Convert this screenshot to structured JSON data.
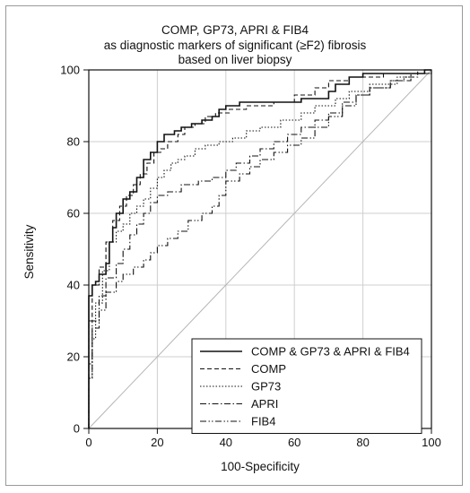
{
  "chart_data": {
    "type": "line",
    "title": "COMP, GP73, APRI & FIB4",
    "subtitle": "as diagnostic markers of significant (≥F2) fibrosis",
    "subtitle2": "based on liver biopsy",
    "xlabel": "100-Specificity",
    "ylabel": "Sensitivity",
    "xlim": [
      0,
      100
    ],
    "ylim": [
      0,
      100
    ],
    "x_ticks": [
      0,
      20,
      40,
      60,
      80,
      100
    ],
    "y_ticks": [
      0,
      20,
      40,
      60,
      80,
      100
    ],
    "grid": true,
    "legend_position": "bottom-right",
    "diagonal_reference": true,
    "series": [
      {
        "name": "COMP & GP73 & APRI & FIB4",
        "style": "solid",
        "points": [
          [
            0,
            0
          ],
          [
            0,
            37
          ],
          [
            1,
            37
          ],
          [
            1,
            40
          ],
          [
            2,
            40
          ],
          [
            2,
            41
          ],
          [
            3,
            41
          ],
          [
            3,
            43
          ],
          [
            5,
            43
          ],
          [
            5,
            46
          ],
          [
            6,
            46
          ],
          [
            6,
            52
          ],
          [
            7,
            52
          ],
          [
            7,
            56
          ],
          [
            8,
            56
          ],
          [
            8,
            60
          ],
          [
            10,
            60
          ],
          [
            10,
            64
          ],
          [
            12,
            64
          ],
          [
            12,
            66
          ],
          [
            14,
            66
          ],
          [
            14,
            70
          ],
          [
            16,
            70
          ],
          [
            16,
            75
          ],
          [
            18,
            75
          ],
          [
            18,
            77
          ],
          [
            20,
            77
          ],
          [
            20,
            80
          ],
          [
            22,
            80
          ],
          [
            22,
            82
          ],
          [
            25,
            82
          ],
          [
            25,
            83
          ],
          [
            27,
            83
          ],
          [
            27,
            84
          ],
          [
            30,
            84
          ],
          [
            30,
            85
          ],
          [
            33,
            85
          ],
          [
            33,
            86
          ],
          [
            36,
            86
          ],
          [
            36,
            87
          ],
          [
            38,
            87
          ],
          [
            38,
            89
          ],
          [
            40,
            89
          ],
          [
            40,
            90
          ],
          [
            44,
            90
          ],
          [
            44,
            91
          ],
          [
            62,
            91
          ],
          [
            62,
            92
          ],
          [
            70,
            92
          ],
          [
            70,
            94
          ],
          [
            72,
            94
          ],
          [
            72,
            96
          ],
          [
            76,
            96
          ],
          [
            76,
            98
          ],
          [
            80,
            98
          ],
          [
            80,
            99
          ],
          [
            98,
            99
          ],
          [
            98,
            100
          ],
          [
            100,
            100
          ]
        ]
      },
      {
        "name": "COMP",
        "style": "dashed",
        "points": [
          [
            0,
            0
          ],
          [
            0,
            30
          ],
          [
            1,
            30
          ],
          [
            1,
            40
          ],
          [
            3,
            40
          ],
          [
            3,
            45
          ],
          [
            5,
            45
          ],
          [
            5,
            52
          ],
          [
            7,
            52
          ],
          [
            7,
            58
          ],
          [
            9,
            58
          ],
          [
            9,
            62
          ],
          [
            11,
            62
          ],
          [
            11,
            65
          ],
          [
            13,
            65
          ],
          [
            13,
            68
          ],
          [
            15,
            68
          ],
          [
            15,
            71
          ],
          [
            17,
            71
          ],
          [
            17,
            74
          ],
          [
            19,
            74
          ],
          [
            19,
            77
          ],
          [
            21,
            77
          ],
          [
            21,
            78
          ],
          [
            23,
            78
          ],
          [
            23,
            80
          ],
          [
            26,
            80
          ],
          [
            26,
            82
          ],
          [
            28,
            82
          ],
          [
            28,
            84
          ],
          [
            31,
            84
          ],
          [
            31,
            85
          ],
          [
            34,
            85
          ],
          [
            34,
            87
          ],
          [
            37,
            87
          ],
          [
            37,
            88
          ],
          [
            41,
            88
          ],
          [
            41,
            89
          ],
          [
            46,
            89
          ],
          [
            46,
            90
          ],
          [
            54,
            90
          ],
          [
            54,
            91
          ],
          [
            60,
            91
          ],
          [
            60,
            93
          ],
          [
            66,
            93
          ],
          [
            66,
            95
          ],
          [
            70,
            95
          ],
          [
            70,
            97
          ],
          [
            76,
            97
          ],
          [
            76,
            98
          ],
          [
            86,
            98
          ],
          [
            86,
            99
          ],
          [
            96,
            99
          ],
          [
            96,
            100
          ],
          [
            100,
            100
          ]
        ]
      },
      {
        "name": "GP73",
        "style": "dotted",
        "points": [
          [
            0,
            0
          ],
          [
            0,
            14
          ],
          [
            1,
            14
          ],
          [
            1,
            25
          ],
          [
            2,
            25
          ],
          [
            2,
            35
          ],
          [
            4,
            35
          ],
          [
            4,
            44
          ],
          [
            6,
            44
          ],
          [
            6,
            52
          ],
          [
            8,
            52
          ],
          [
            8,
            55
          ],
          [
            10,
            55
          ],
          [
            10,
            57
          ],
          [
            12,
            57
          ],
          [
            12,
            60
          ],
          [
            14,
            60
          ],
          [
            14,
            62
          ],
          [
            16,
            62
          ],
          [
            16,
            64
          ],
          [
            18,
            64
          ],
          [
            18,
            67
          ],
          [
            20,
            67
          ],
          [
            20,
            70
          ],
          [
            22,
            70
          ],
          [
            22,
            72
          ],
          [
            24,
            72
          ],
          [
            24,
            74
          ],
          [
            26,
            74
          ],
          [
            26,
            75
          ],
          [
            28,
            75
          ],
          [
            28,
            76
          ],
          [
            31,
            76
          ],
          [
            31,
            78
          ],
          [
            34,
            78
          ],
          [
            34,
            79
          ],
          [
            38,
            79
          ],
          [
            38,
            80
          ],
          [
            42,
            80
          ],
          [
            42,
            81
          ],
          [
            46,
            81
          ],
          [
            46,
            83
          ],
          [
            50,
            83
          ],
          [
            50,
            84
          ],
          [
            56,
            84
          ],
          [
            56,
            86
          ],
          [
            62,
            86
          ],
          [
            62,
            88
          ],
          [
            66,
            88
          ],
          [
            66,
            90
          ],
          [
            72,
            90
          ],
          [
            72,
            92
          ],
          [
            76,
            92
          ],
          [
            76,
            94
          ],
          [
            82,
            94
          ],
          [
            82,
            96
          ],
          [
            90,
            96
          ],
          [
            90,
            98
          ],
          [
            94,
            98
          ],
          [
            94,
            99
          ],
          [
            100,
            99
          ],
          [
            100,
            100
          ]
        ]
      },
      {
        "name": "APRI",
        "style": "dashdot",
        "points": [
          [
            0,
            0
          ],
          [
            0,
            18
          ],
          [
            1,
            18
          ],
          [
            1,
            30
          ],
          [
            3,
            30
          ],
          [
            3,
            37
          ],
          [
            5,
            37
          ],
          [
            5,
            42
          ],
          [
            8,
            42
          ],
          [
            8,
            46
          ],
          [
            10,
            46
          ],
          [
            10,
            50
          ],
          [
            12,
            50
          ],
          [
            12,
            54
          ],
          [
            14,
            54
          ],
          [
            14,
            57
          ],
          [
            16,
            57
          ],
          [
            16,
            60
          ],
          [
            18,
            60
          ],
          [
            18,
            63
          ],
          [
            20,
            63
          ],
          [
            20,
            65
          ],
          [
            23,
            65
          ],
          [
            23,
            66
          ],
          [
            27,
            66
          ],
          [
            27,
            68
          ],
          [
            32,
            68
          ],
          [
            32,
            69
          ],
          [
            36,
            69
          ],
          [
            36,
            70
          ],
          [
            40,
            70
          ],
          [
            40,
            72
          ],
          [
            43,
            72
          ],
          [
            43,
            74
          ],
          [
            47,
            74
          ],
          [
            47,
            76
          ],
          [
            50,
            76
          ],
          [
            50,
            78
          ],
          [
            54,
            78
          ],
          [
            54,
            80
          ],
          [
            58,
            80
          ],
          [
            58,
            82
          ],
          [
            62,
            82
          ],
          [
            62,
            84
          ],
          [
            66,
            84
          ],
          [
            66,
            86
          ],
          [
            70,
            86
          ],
          [
            70,
            88
          ],
          [
            74,
            88
          ],
          [
            74,
            91
          ],
          [
            78,
            91
          ],
          [
            78,
            93
          ],
          [
            82,
            93
          ],
          [
            82,
            95
          ],
          [
            88,
            95
          ],
          [
            88,
            97
          ],
          [
            94,
            97
          ],
          [
            94,
            99
          ],
          [
            100,
            99
          ],
          [
            100,
            100
          ]
        ]
      },
      {
        "name": "FIB4",
        "style": "dashdotdot",
        "points": [
          [
            0,
            0
          ],
          [
            0,
            14
          ],
          [
            1,
            14
          ],
          [
            1,
            28
          ],
          [
            3,
            28
          ],
          [
            3,
            33
          ],
          [
            5,
            33
          ],
          [
            5,
            38
          ],
          [
            8,
            38
          ],
          [
            8,
            41
          ],
          [
            10,
            41
          ],
          [
            10,
            43
          ],
          [
            13,
            43
          ],
          [
            13,
            45
          ],
          [
            16,
            45
          ],
          [
            16,
            47
          ],
          [
            18,
            47
          ],
          [
            18,
            49
          ],
          [
            20,
            49
          ],
          [
            20,
            51
          ],
          [
            23,
            51
          ],
          [
            23,
            53
          ],
          [
            26,
            53
          ],
          [
            26,
            55
          ],
          [
            29,
            55
          ],
          [
            29,
            58
          ],
          [
            33,
            58
          ],
          [
            33,
            60
          ],
          [
            36,
            60
          ],
          [
            36,
            62
          ],
          [
            38,
            62
          ],
          [
            38,
            65
          ],
          [
            40,
            65
          ],
          [
            40,
            69
          ],
          [
            44,
            69
          ],
          [
            44,
            71
          ],
          [
            47,
            71
          ],
          [
            47,
            73
          ],
          [
            50,
            73
          ],
          [
            50,
            75
          ],
          [
            54,
            75
          ],
          [
            54,
            77
          ],
          [
            58,
            77
          ],
          [
            58,
            79
          ],
          [
            62,
            79
          ],
          [
            62,
            81
          ],
          [
            66,
            81
          ],
          [
            66,
            84
          ],
          [
            70,
            84
          ],
          [
            70,
            87
          ],
          [
            74,
            87
          ],
          [
            74,
            90
          ],
          [
            78,
            90
          ],
          [
            78,
            93
          ],
          [
            82,
            93
          ],
          [
            82,
            95
          ],
          [
            88,
            95
          ],
          [
            88,
            97
          ],
          [
            92,
            97
          ],
          [
            92,
            98
          ],
          [
            96,
            98
          ],
          [
            96,
            99
          ],
          [
            100,
            99
          ],
          [
            100,
            100
          ]
        ]
      }
    ]
  }
}
